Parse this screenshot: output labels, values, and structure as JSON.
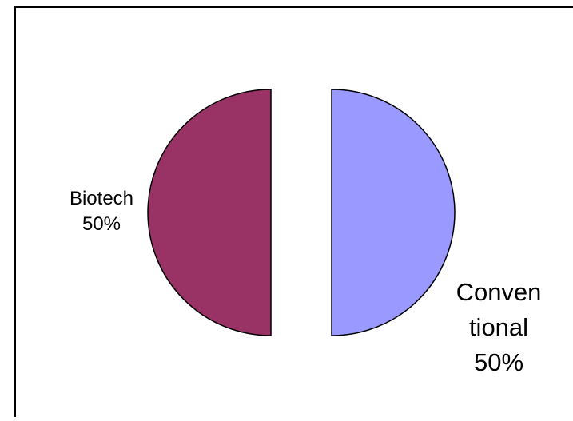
{
  "chart_data": {
    "type": "pie",
    "title": "",
    "legend": "none",
    "exploded": true,
    "slices": [
      {
        "label_lines": [
          "Biotech",
          "50%"
        ],
        "label": "Biotech",
        "value": 50,
        "color": "#993366"
      },
      {
        "label_lines": [
          "Conven",
          "tional",
          "50%"
        ],
        "label": "Conventional",
        "value": 50,
        "color": "#9999ff"
      }
    ]
  }
}
